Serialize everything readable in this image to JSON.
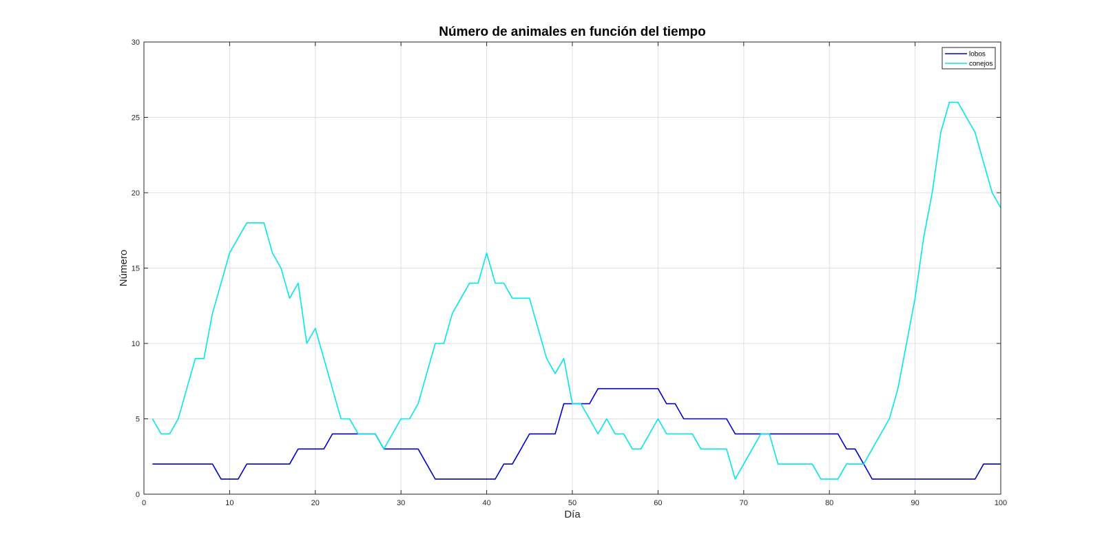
{
  "chart_data": {
    "type": "line",
    "title": "Número de animales en función del tiempo",
    "xlabel": "Día",
    "ylabel": "Número",
    "xlim": [
      0,
      100
    ],
    "ylim": [
      0,
      30
    ],
    "xticks": [
      0,
      10,
      20,
      30,
      40,
      50,
      60,
      70,
      80,
      90,
      100
    ],
    "yticks": [
      0,
      5,
      10,
      15,
      20,
      25,
      30
    ],
    "grid": true,
    "legend_position": "top-right",
    "x": [
      1,
      2,
      3,
      4,
      5,
      6,
      7,
      8,
      9,
      10,
      11,
      12,
      13,
      14,
      15,
      16,
      17,
      18,
      19,
      20,
      21,
      22,
      23,
      24,
      25,
      26,
      27,
      28,
      29,
      30,
      31,
      32,
      33,
      34,
      35,
      36,
      37,
      38,
      39,
      40,
      41,
      42,
      43,
      44,
      45,
      46,
      47,
      48,
      49,
      50,
      51,
      52,
      53,
      54,
      55,
      56,
      57,
      58,
      59,
      60,
      61,
      62,
      63,
      64,
      65,
      66,
      67,
      68,
      69,
      70,
      71,
      72,
      73,
      74,
      75,
      76,
      77,
      78,
      79,
      80,
      81,
      82,
      83,
      84,
      85,
      86,
      87,
      88,
      89,
      90,
      91,
      92,
      93,
      94,
      95,
      96,
      97,
      98,
      99,
      100
    ],
    "series": [
      {
        "name": "lobos",
        "color": "#0000cc",
        "values": [
          2,
          2,
          2,
          2,
          2,
          2,
          2,
          2,
          1,
          1,
          1,
          2,
          2,
          2,
          2,
          2,
          2,
          3,
          3,
          3,
          3,
          4,
          4,
          4,
          4,
          4,
          4,
          3,
          3,
          3,
          3,
          3,
          2,
          1,
          1,
          1,
          1,
          1,
          1,
          1,
          1,
          2,
          2,
          3,
          4,
          4,
          4,
          4,
          6,
          6,
          6,
          6,
          7,
          7,
          7,
          7,
          7,
          7,
          7,
          7,
          6,
          6,
          5,
          5,
          5,
          5,
          5,
          5,
          4,
          4,
          4,
          4,
          4,
          4,
          4,
          4,
          4,
          4,
          4,
          4,
          4,
          3,
          3,
          2,
          1,
          1,
          1,
          1,
          1,
          1,
          1,
          1,
          1,
          1,
          1,
          1,
          1,
          2,
          2,
          2
        ]
      },
      {
        "name": "conejos",
        "color": "#00e6ee",
        "values": [
          5,
          4,
          4,
          5,
          7,
          9,
          9,
          12,
          14,
          16,
          17,
          18,
          18,
          18,
          16,
          15,
          13,
          14,
          10,
          11,
          9,
          7,
          5,
          5,
          4,
          4,
          4,
          3,
          4,
          5,
          5,
          6,
          8,
          10,
          10,
          12,
          13,
          14,
          14,
          16,
          14,
          14,
          13,
          13,
          13,
          11,
          9,
          8,
          9,
          6,
          6,
          5,
          4,
          5,
          4,
          4,
          3,
          3,
          4,
          5,
          4,
          4,
          4,
          4,
          3,
          3,
          3,
          3,
          1,
          2,
          3,
          4,
          4,
          2,
          2,
          2,
          2,
          2,
          1,
          1,
          1,
          2,
          2,
          2,
          3,
          4,
          5,
          7,
          10,
          13,
          17,
          20,
          24,
          26,
          26,
          25,
          24,
          22,
          20,
          19
        ]
      }
    ]
  }
}
